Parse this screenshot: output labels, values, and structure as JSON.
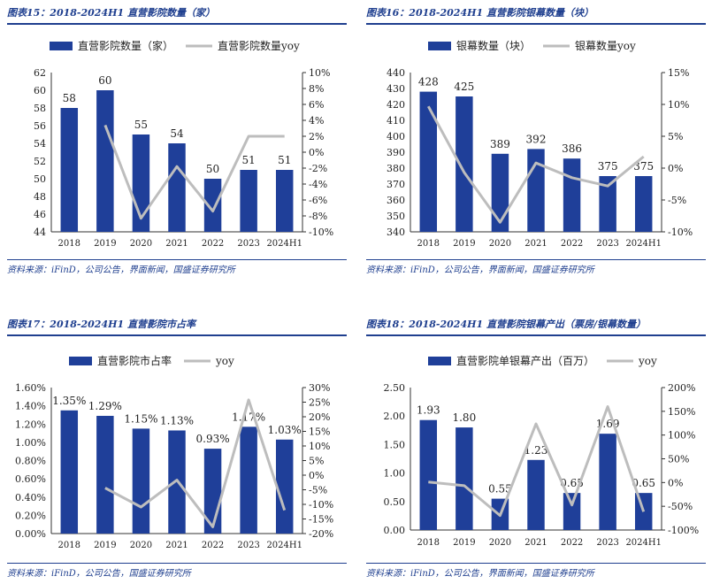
{
  "chart_data": [
    {
      "type": "bar",
      "title": "图表15：2018-2024H1 直营影院数量（家）",
      "source": "资料来源：iFinD，公司公告，界面新闻，国盛证券研究所",
      "categories": [
        "2018",
        "2019",
        "2020",
        "2021",
        "2022",
        "2023",
        "2024H1"
      ],
      "series": [
        {
          "name": "直营影院数量（家）",
          "type": "bar",
          "axis": "left",
          "color": "#1f3f99",
          "values": [
            58,
            60,
            55,
            54,
            50,
            51,
            51
          ]
        },
        {
          "name": "直营影院数量yoy",
          "type": "line",
          "axis": "right",
          "color": "#bdbdbd",
          "values": [
            null,
            3.4,
            -8.3,
            -1.8,
            -7.4,
            2.0,
            2.0
          ]
        }
      ],
      "data_labels": [
        "58",
        "60",
        "55",
        "54",
        "50",
        "51",
        "51"
      ],
      "ylim_left": [
        44,
        62
      ],
      "yticks_left": [
        "44",
        "46",
        "48",
        "50",
        "52",
        "54",
        "56",
        "58",
        "60",
        "62"
      ],
      "ylim_right": [
        -10,
        10
      ],
      "yticks_right": [
        "-10%",
        "-8%",
        "-6%",
        "-4%",
        "-2%",
        "0%",
        "2%",
        "4%",
        "6%",
        "8%",
        "10%"
      ]
    },
    {
      "type": "bar",
      "title": "图表16：2018-2024H1 直营影院银幕数量（块）",
      "source": "资料来源：iFinD，公司公告，界面新闻，国盛证券研究所",
      "categories": [
        "2018",
        "2019",
        "2020",
        "2021",
        "2022",
        "2023",
        "2024H1"
      ],
      "series": [
        {
          "name": "银幕数量（块）",
          "type": "bar",
          "axis": "left",
          "color": "#1f3f99",
          "values": [
            428,
            425,
            389,
            392,
            386,
            375,
            375
          ]
        },
        {
          "name": "银幕数量yoy",
          "type": "line",
          "axis": "right",
          "color": "#bdbdbd",
          "values": [
            9.7,
            -0.7,
            -8.5,
            0.8,
            -1.5,
            -2.8,
            1.8
          ]
        }
      ],
      "data_labels": [
        "428",
        "425",
        "389",
        "392",
        "386",
        "375",
        "375"
      ],
      "ylim_left": [
        340,
        440
      ],
      "yticks_left": [
        "340",
        "350",
        "360",
        "370",
        "380",
        "390",
        "400",
        "410",
        "420",
        "430",
        "440"
      ],
      "ylim_right": [
        -10,
        15
      ],
      "yticks_right": [
        "-10%",
        "-5%",
        "0%",
        "5%",
        "10%",
        "15%"
      ]
    },
    {
      "type": "bar",
      "title": "图表17：2018-2024H1 直营影院市占率",
      "source": "资料来源：iFinD，公司公告，国盛证券研究所",
      "categories": [
        "2018",
        "2019",
        "2020",
        "2021",
        "2022",
        "2023",
        "2024H1"
      ],
      "series": [
        {
          "name": "直营影院市占率",
          "type": "bar",
          "axis": "left",
          "color": "#1f3f99",
          "values": [
            1.35,
            1.29,
            1.15,
            1.13,
            0.93,
            1.17,
            1.03
          ]
        },
        {
          "name": "yoy",
          "type": "line",
          "axis": "right",
          "color": "#bdbdbd",
          "values": [
            null,
            -4.4,
            -10.9,
            -1.7,
            -17.7,
            25.8,
            -12.0
          ]
        }
      ],
      "data_labels": [
        "1.35%",
        "1.29%",
        "1.15%",
        "1.13%",
        "0.93%",
        "1.17%",
        "1.03%"
      ],
      "ylim_left": [
        0,
        1.6
      ],
      "yticks_left": [
        "0.00%",
        "0.20%",
        "0.40%",
        "0.60%",
        "0.80%",
        "1.00%",
        "1.20%",
        "1.40%",
        "1.60%"
      ],
      "ylim_right": [
        -20,
        30
      ],
      "yticks_right": [
        "-20%",
        "-15%",
        "-10%",
        "-5%",
        "0%",
        "5%",
        "10%",
        "15%",
        "20%",
        "25%",
        "30%"
      ]
    },
    {
      "type": "bar",
      "title": "图表18：2018-2024H1 直营影院银幕产出（票房/银幕数量）",
      "source": "资料来源：iFinD，公司公告，界面新闻，国盛证券研究所",
      "categories": [
        "2018",
        "2019",
        "2020",
        "2021",
        "2022",
        "2023",
        "2024H1"
      ],
      "series": [
        {
          "name": "直营影院单银幕产出（百万）",
          "type": "bar",
          "axis": "left",
          "color": "#1f3f99",
          "values": [
            1.93,
            1.8,
            0.55,
            1.23,
            0.65,
            1.69,
            0.65
          ]
        },
        {
          "name": "yoy",
          "type": "line",
          "axis": "right",
          "color": "#bdbdbd",
          "values": [
            1,
            -6.7,
            -69.4,
            123.6,
            -47.2,
            160,
            -61.5
          ]
        }
      ],
      "data_labels": [
        "1.93",
        "1.80",
        "0.55",
        "1.23",
        "0.65",
        "1.69",
        "0.65"
      ],
      "ylim_left": [
        0,
        2.5
      ],
      "yticks_left": [
        "0.00",
        "0.50",
        "1.00",
        "1.50",
        "2.00",
        "2.50"
      ],
      "ylim_right": [
        -100,
        200
      ],
      "yticks_right": [
        "-100%",
        "-50%",
        "0%",
        "50%",
        "100%",
        "150%",
        "200%"
      ]
    }
  ]
}
